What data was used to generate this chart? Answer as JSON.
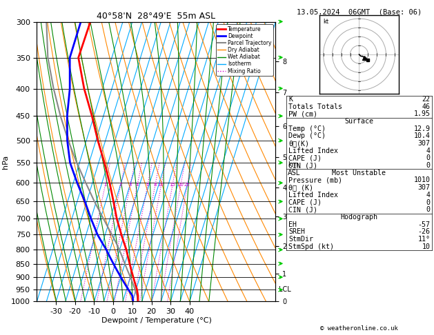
{
  "title_main": "40°58'N  28°49'E  55m ASL",
  "title_right": "13.05.2024  06GMT  (Base: 06)",
  "xlabel": "Dewpoint / Temperature (°C)",
  "ylabel_left": "hPa",
  "bg_color": "#ffffff",
  "pressure_levels": [
    300,
    350,
    400,
    450,
    500,
    550,
    600,
    650,
    700,
    750,
    800,
    850,
    900,
    950,
    1000
  ],
  "temp_ticks": [
    -30,
    -20,
    -10,
    0,
    10,
    20,
    30,
    40
  ],
  "skew_factor": 45.0,
  "isotherm_values": [
    -40,
    -35,
    -30,
    -25,
    -20,
    -15,
    -10,
    -5,
    0,
    5,
    10,
    15,
    20,
    25,
    30,
    35,
    40
  ],
  "isotherm_color": "#00aaff",
  "isotherm_lw": 0.8,
  "dry_adiabat_color": "#ff8800",
  "dry_adiabat_lw": 0.8,
  "wet_adiabat_color": "#008800",
  "wet_adiabat_lw": 0.8,
  "mixing_ratio_color": "#cc00cc",
  "mixing_ratio_lw": 0.8,
  "mixing_ratio_values": [
    1,
    2,
    3,
    4,
    6,
    8,
    10,
    15,
    20,
    25
  ],
  "temp_profile_pressure": [
    1000,
    975,
    950,
    925,
    900,
    875,
    850,
    825,
    800,
    775,
    750,
    700,
    650,
    600,
    550,
    500,
    450,
    400,
    350,
    300
  ],
  "temp_profile_temp": [
    12.9,
    12.0,
    10.5,
    8.5,
    6.5,
    4.5,
    2.5,
    0.5,
    -1.5,
    -4.0,
    -6.5,
    -11.5,
    -16.0,
    -21.0,
    -27.0,
    -34.0,
    -41.0,
    -49.5,
    -57.5,
    -57.0
  ],
  "dewp_profile_pressure": [
    1000,
    975,
    950,
    925,
    900,
    875,
    850,
    825,
    800,
    775,
    750,
    700,
    650,
    600,
    550,
    500,
    450,
    400,
    350,
    300
  ],
  "dewp_profile_temp": [
    10.4,
    9.0,
    6.0,
    3.0,
    0.0,
    -3.0,
    -6.0,
    -9.0,
    -12.0,
    -15.5,
    -19.0,
    -25.0,
    -31.0,
    -38.0,
    -45.0,
    -50.0,
    -54.0,
    -57.0,
    -62.0,
    -62.0
  ],
  "parcel_profile_pressure": [
    1000,
    975,
    950,
    925,
    900,
    875,
    850,
    825,
    800,
    775,
    750,
    700,
    650,
    600,
    550,
    500,
    450,
    400,
    350,
    300
  ],
  "parcel_profile_temp": [
    12.9,
    11.5,
    9.5,
    7.3,
    5.0,
    2.5,
    0.0,
    -2.5,
    -5.2,
    -8.2,
    -11.5,
    -18.5,
    -26.0,
    -33.5,
    -41.5,
    -49.5,
    -57.5,
    -65.5,
    -73.5,
    -80.0
  ],
  "temp_color": "#ff0000",
  "temp_lw": 2.0,
  "dewp_color": "#0000ff",
  "dewp_lw": 2.0,
  "parcel_color": "#888888",
  "parcel_lw": 1.5,
  "km_levels": [
    0,
    1,
    2,
    3,
    4,
    5,
    6,
    7,
    8
  ],
  "km_pressures": [
    1013,
    898,
    795,
    700,
    616,
    541,
    472,
    408,
    356
  ],
  "lcl_pressure": 962,
  "legend_items": [
    {
      "label": "Temperature",
      "color": "#ff0000",
      "lw": 2,
      "ls": "-"
    },
    {
      "label": "Dewpoint",
      "color": "#0000ff",
      "lw": 2,
      "ls": "-"
    },
    {
      "label": "Parcel Trajectory",
      "color": "#888888",
      "lw": 1.5,
      "ls": "-"
    },
    {
      "label": "Dry Adiabat",
      "color": "#ff8800",
      "lw": 1,
      "ls": "-"
    },
    {
      "label": "Wet Adiabat",
      "color": "#008800",
      "lw": 1,
      "ls": "-"
    },
    {
      "label": "Isotherm",
      "color": "#00aaff",
      "lw": 1,
      "ls": "-"
    },
    {
      "label": "Mixing Ratio",
      "color": "#cc00cc",
      "lw": 1,
      "ls": ":"
    }
  ],
  "right_panel": {
    "K": "22",
    "Totals_Totals": "46",
    "PW_cm": "1.95",
    "Surface_Temp": "12.9",
    "Surface_Dewp": "10.4",
    "Surface_theta_e": "307",
    "Surface_LI": "4",
    "Surface_CAPE": "0",
    "Surface_CIN": "0",
    "MU_Pressure": "1010",
    "MU_theta_e": "307",
    "MU_LI": "4",
    "MU_CAPE": "0",
    "MU_CIN": "0",
    "EH": "-57",
    "SREH": "-26",
    "StmDir": "11°",
    "StmSpd": "10"
  },
  "hodo_rings": [
    5,
    10,
    15,
    20
  ],
  "hodo_color": "#aaaaaa",
  "copyright": "© weatheronline.co.uk",
  "wind_barb_pressures": [
    950,
    900,
    850,
    800,
    750,
    700,
    650,
    600,
    550,
    500,
    450,
    400,
    350,
    300
  ],
  "wind_barb_color": "#00cc00"
}
